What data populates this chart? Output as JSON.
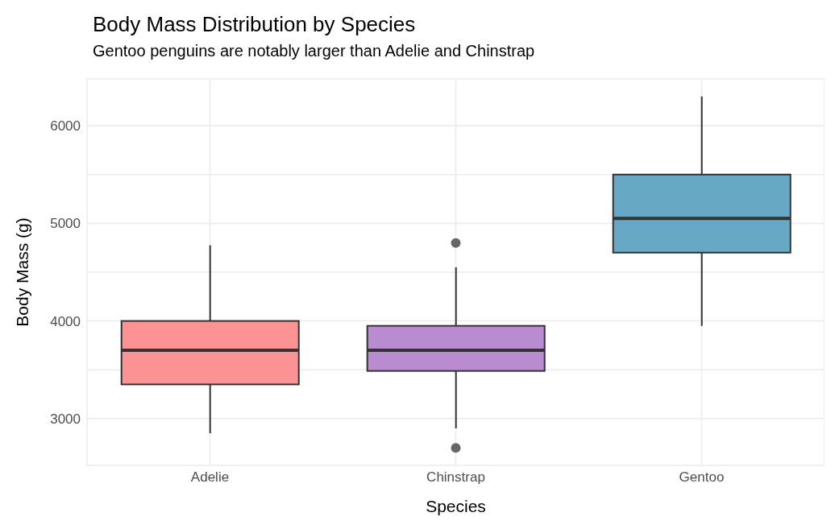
{
  "chart_data": {
    "type": "box",
    "title": "Body Mass Distribution by Species",
    "subtitle": "Gentoo penguins are notably larger than Adelie and Chinstrap",
    "xlabel": "Species",
    "ylabel": "Body Mass (g)",
    "categories": [
      "Adelie",
      "Chinstrap",
      "Gentoo"
    ],
    "colors": [
      "#fb9395",
      "#b98bd1",
      "#67a9c4"
    ],
    "boxes": [
      {
        "low": 2850,
        "q1": 3350,
        "median": 3700,
        "q3": 4000,
        "high": 4775
      },
      {
        "low": 2900,
        "q1": 3488,
        "median": 3700,
        "q3": 3950,
        "high": 4550,
        "outliers": [
          2700,
          4800
        ]
      },
      {
        "low": 3950,
        "q1": 4700,
        "median": 5050,
        "q3": 5500,
        "high": 6300
      }
    ],
    "ylim": [
      2520,
      6480
    ],
    "yticks": [
      3000,
      {
        "value": 3500,
        "label": null
      },
      4000,
      {
        "value": 4500,
        "label": null
      },
      5000,
      {
        "value": 5500,
        "label": null
      },
      6000
    ],
    "grid": true
  }
}
